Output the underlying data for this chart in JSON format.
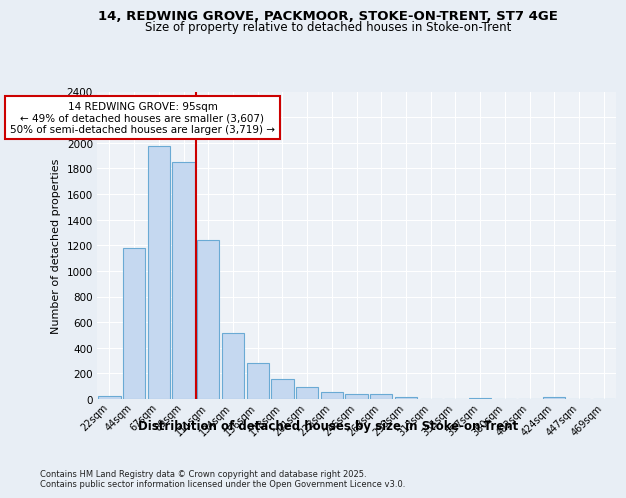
{
  "title1": "14, REDWING GROVE, PACKMOOR, STOKE-ON-TRENT, ST7 4GE",
  "title2": "Size of property relative to detached houses in Stoke-on-Trent",
  "xlabel": "Distribution of detached houses by size in Stoke-on-Trent",
  "ylabel": "Number of detached properties",
  "categories": [
    "22sqm",
    "44sqm",
    "67sqm",
    "89sqm",
    "111sqm",
    "134sqm",
    "156sqm",
    "178sqm",
    "201sqm",
    "223sqm",
    "246sqm",
    "268sqm",
    "290sqm",
    "313sqm",
    "335sqm",
    "357sqm",
    "380sqm",
    "402sqm",
    "424sqm",
    "447sqm",
    "469sqm"
  ],
  "values": [
    25,
    1175,
    1975,
    1850,
    1240,
    515,
    280,
    155,
    90,
    55,
    42,
    38,
    12,
    0,
    0,
    8,
    0,
    0,
    18,
    0,
    0
  ],
  "bar_color": "#c5d8f0",
  "bar_edge_color": "#6aaad4",
  "vline_x": 3.5,
  "vline_color": "#cc0000",
  "annotation_text": "14 REDWING GROVE: 95sqm\n← 49% of detached houses are smaller (3,607)\n50% of semi-detached houses are larger (3,719) →",
  "annotation_box_color": "#ffffff",
  "annotation_box_edge": "#cc0000",
  "footnote1": "Contains HM Land Registry data © Crown copyright and database right 2025.",
  "footnote2": "Contains public sector information licensed under the Open Government Licence v3.0.",
  "bg_color": "#e8eef5",
  "plot_bg_color": "#eef2f7",
  "ylim": [
    0,
    2400
  ],
  "yticks": [
    0,
    200,
    400,
    600,
    800,
    1000,
    1200,
    1400,
    1600,
    1800,
    2000,
    2200,
    2400
  ]
}
